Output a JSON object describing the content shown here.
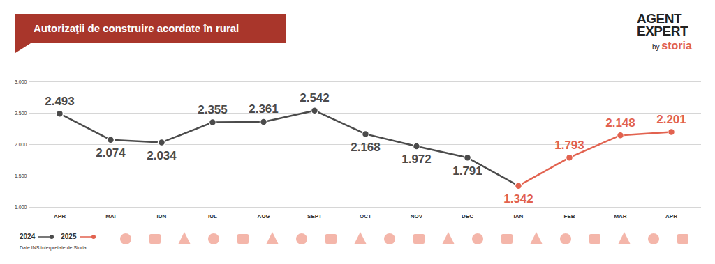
{
  "chart_data": {
    "type": "line",
    "title": "Autorizaţii de construire acordate în rural",
    "categories": [
      "APR",
      "MAI",
      "IUN",
      "IUL",
      "AUG",
      "SEPT",
      "OCT",
      "NOV",
      "DEC",
      "IAN",
      "FEB",
      "MAR",
      "APR"
    ],
    "series": [
      {
        "name": "2024",
        "color": "#4b4b4b",
        "values": [
          2493,
          2074,
          2034,
          2355,
          2361,
          2542,
          2168,
          1972,
          1791,
          null,
          null,
          null,
          null
        ],
        "value_labels": [
          "2.493",
          "2.074",
          "2.034",
          "2.355",
          "2.361",
          "2.542",
          "2.168",
          "1.972",
          "1.791",
          null,
          null,
          null,
          null
        ]
      },
      {
        "name": "2025",
        "color": "#e2624f",
        "values": [
          null,
          null,
          null,
          null,
          null,
          null,
          null,
          null,
          null,
          1342,
          1793,
          2148,
          2201
        ],
        "value_labels": [
          null,
          null,
          null,
          null,
          null,
          null,
          null,
          null,
          null,
          "1.342",
          "1.793",
          "2.148",
          "2.201"
        ]
      }
    ],
    "ylim": [
      1000,
      3000
    ],
    "yticks": [
      {
        "value": 1000,
        "label": "1.000"
      },
      {
        "value": 1500,
        "label": "1.500"
      },
      {
        "value": 2000,
        "label": "2.000"
      },
      {
        "value": 2500,
        "label": "2.500"
      },
      {
        "value": 3000,
        "label": "3.000"
      }
    ],
    "grid": true,
    "data_labels": true,
    "marker": "circle",
    "legend": "bottom-left",
    "source": "Date INS interpretate de Storia"
  },
  "branding": {
    "name_lines": [
      "AGENT",
      "EXPERT"
    ],
    "by": "by",
    "brand": "storia"
  }
}
